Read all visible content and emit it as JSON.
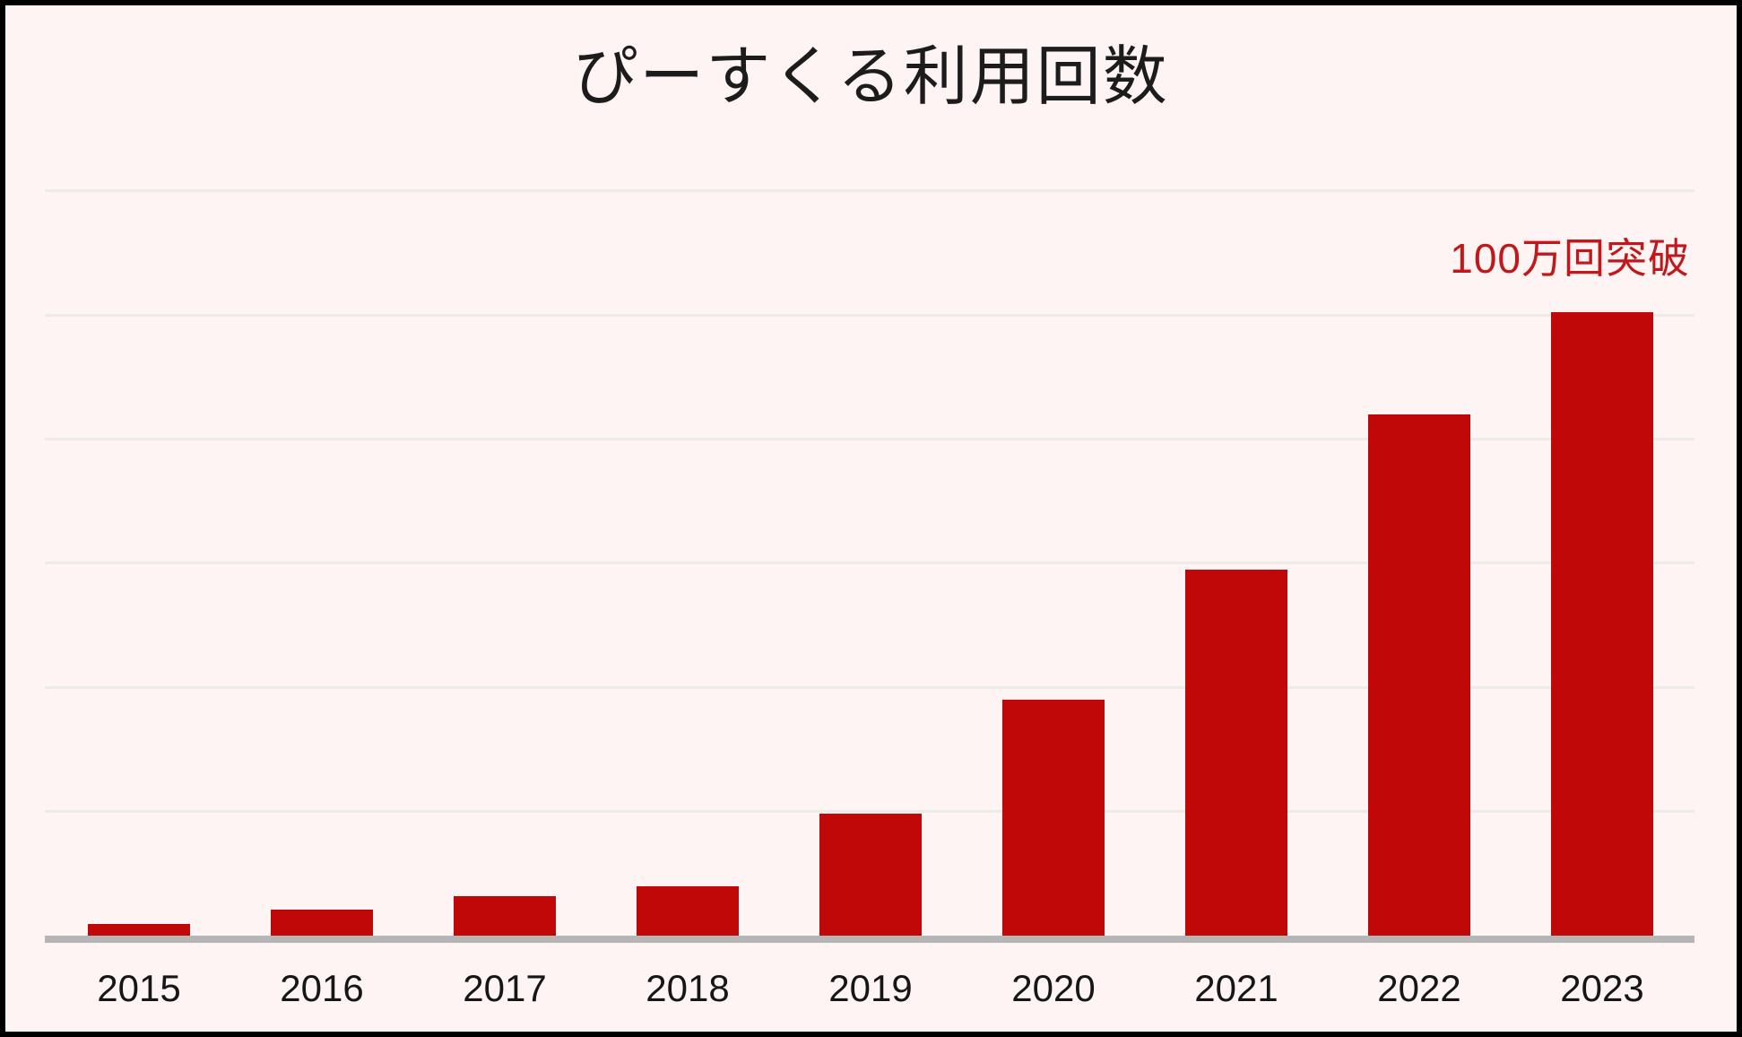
{
  "title": "ぴーすくる利用回数",
  "annotation": {
    "text": "100万回突破",
    "color": "#c0181b"
  },
  "colors": {
    "background": "#fdf4f3",
    "bar": "#c00808",
    "annotation_text": "#c0181b",
    "axis_line": "#b5b5b5",
    "gridline": "#edebe6",
    "title_text": "#1c1c1c",
    "label_text": "#161616",
    "frame_border": "#000000"
  },
  "chart_data": {
    "type": "bar",
    "title": "ぴーすくる利用回数",
    "categories": [
      "2015",
      "2016",
      "2017",
      "2018",
      "2019",
      "2020",
      "2021",
      "2022",
      "2023"
    ],
    "values": [
      1.9,
      4.2,
      6.3,
      8.0,
      19.7,
      38.0,
      59.0,
      84.0,
      100.5
    ],
    "unit": "万回",
    "annotation": "100万回突破",
    "xlabel": "",
    "ylabel": "",
    "ylim": [
      0,
      130
    ],
    "gridline_interval": 20,
    "gridline_values": [
      20,
      40,
      60,
      80,
      100,
      120
    ],
    "gridlines_labeled": false,
    "grid": "horizontal",
    "legend": "none",
    "bar_color": "#c00808"
  }
}
